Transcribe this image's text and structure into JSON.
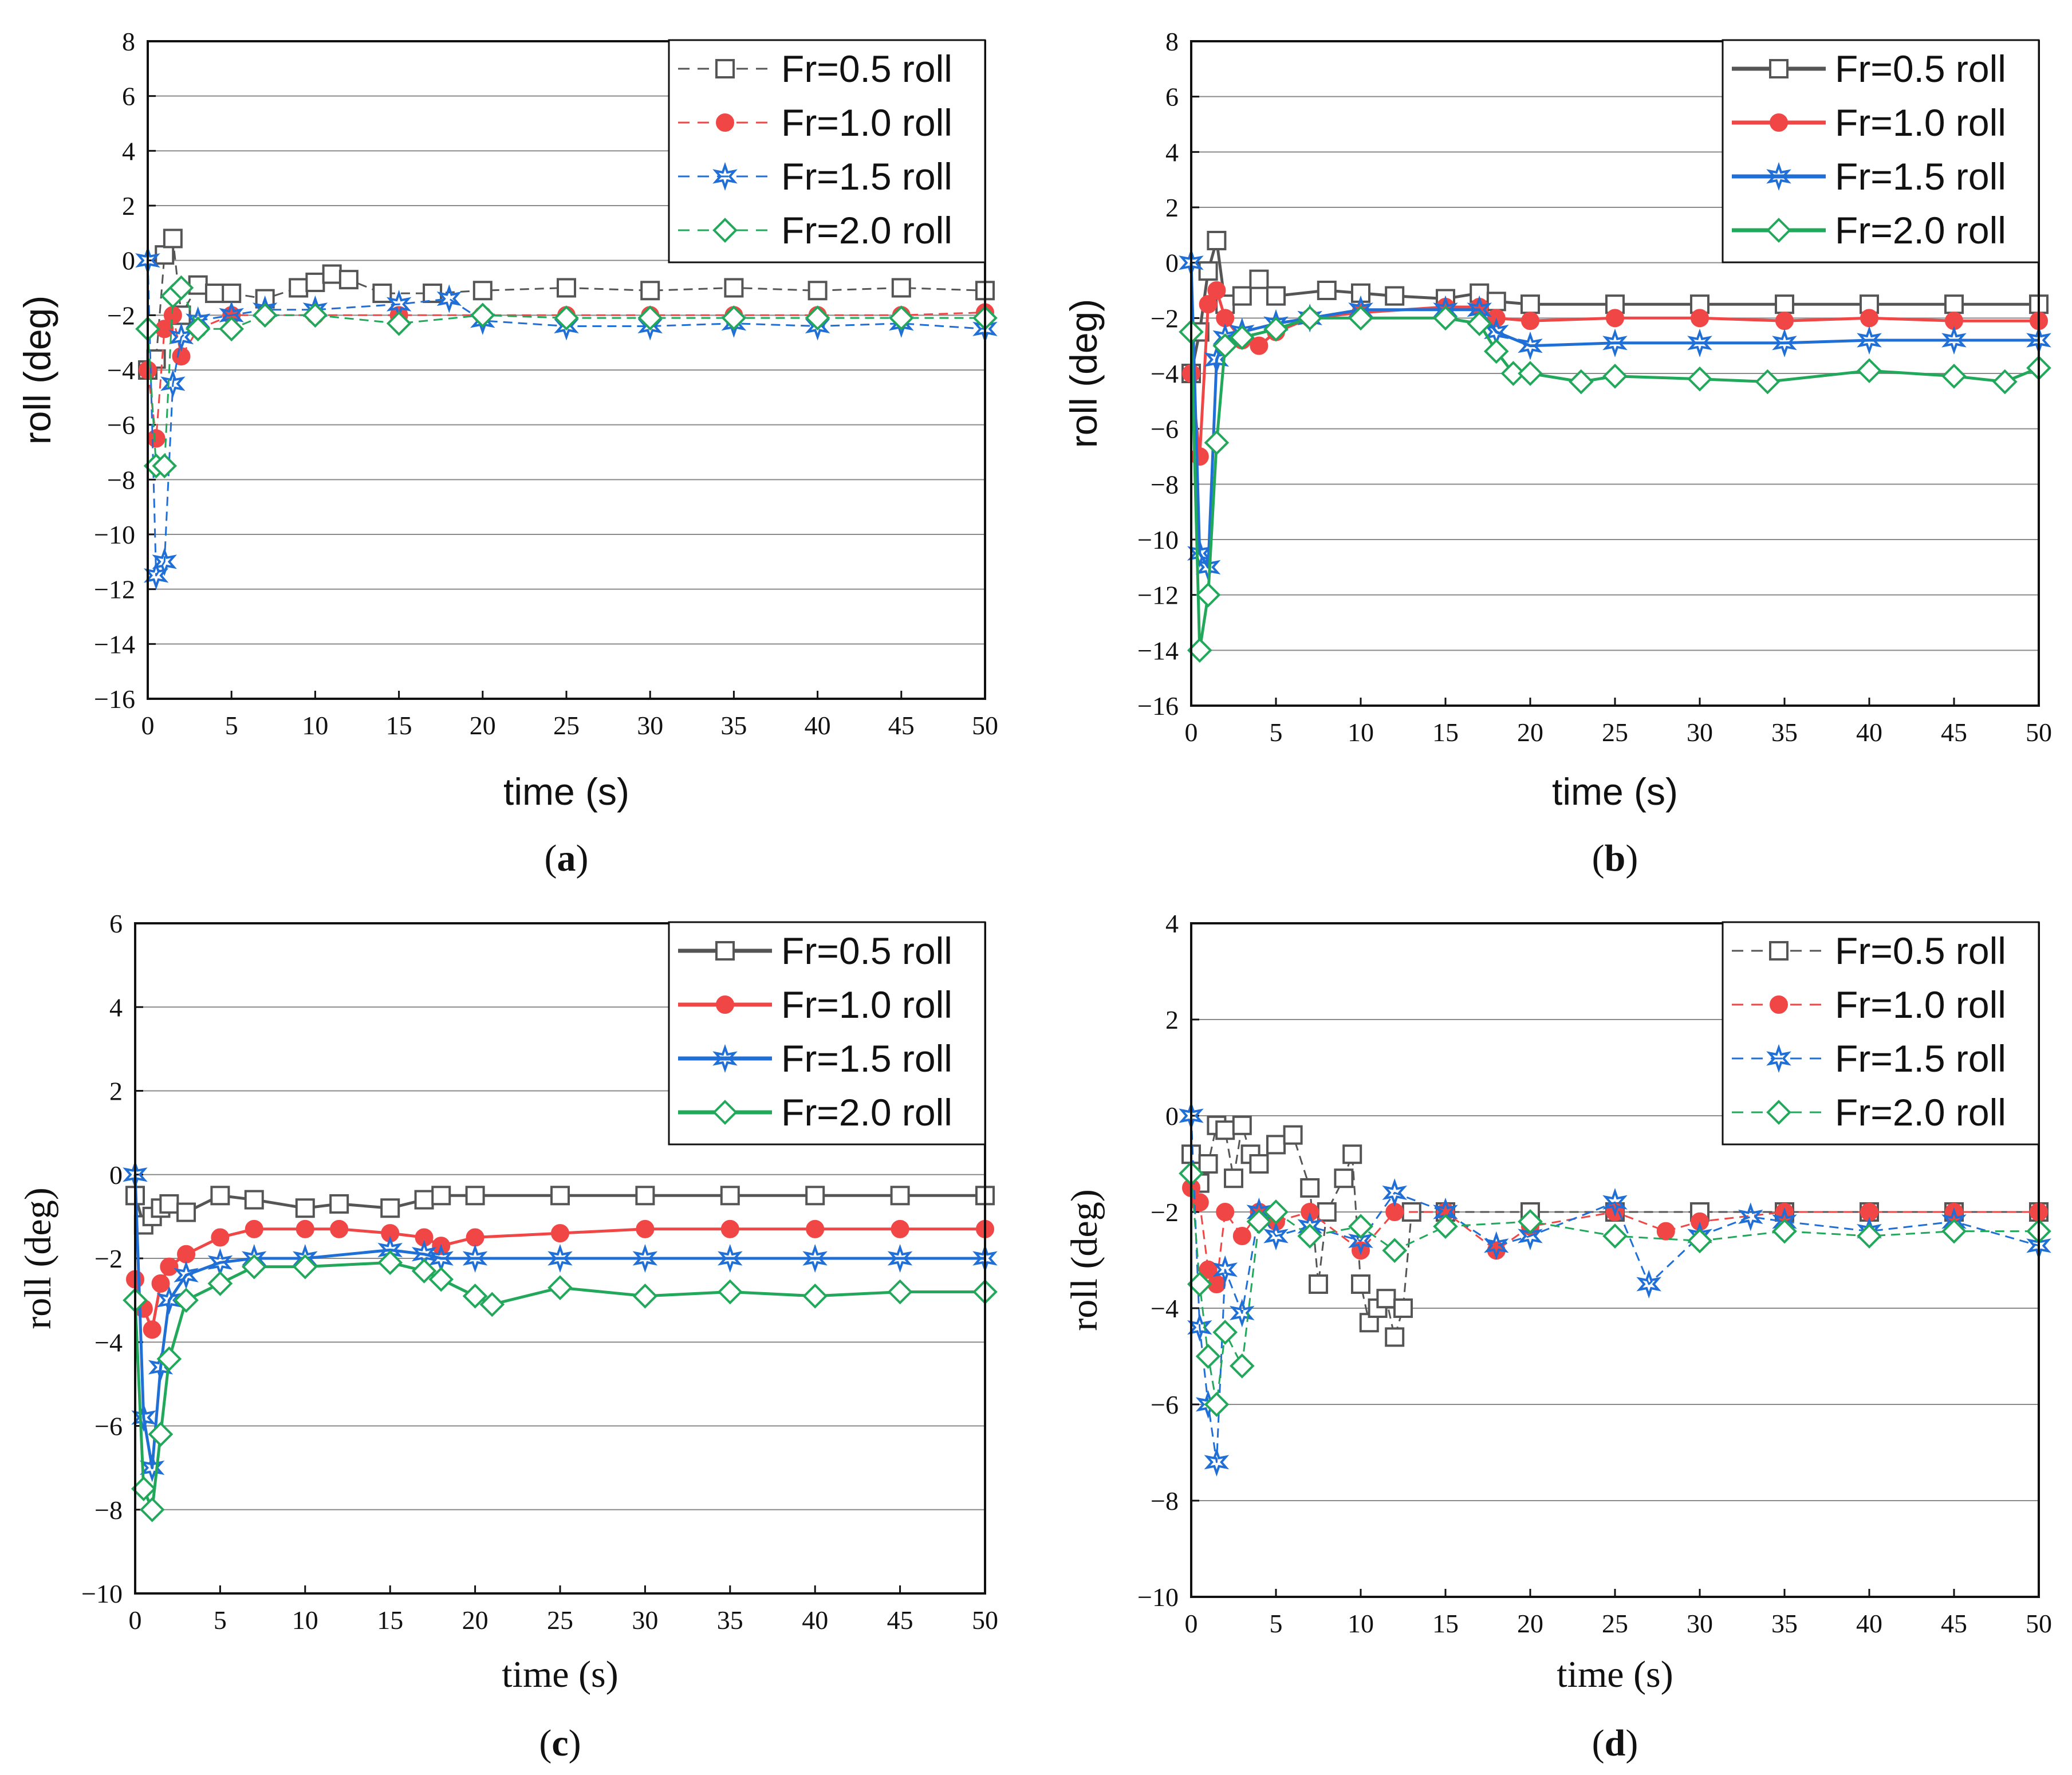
{
  "colors": {
    "Fr=0.5 roll": "#555555",
    "Fr=1.0 roll": "#f04646",
    "Fr=1.5 roll": "#1f6fd6",
    "Fr=2.0 roll": "#22a85a",
    "grid": "#8a8a8a",
    "axis": "#111111"
  },
  "chart_data": [
    {
      "type": "line",
      "caption": "(a)",
      "xlabel": "time  (s)",
      "ylabel": "roll  (deg)",
      "xlim": [
        0,
        50
      ],
      "ylim": [
        -16,
        8
      ],
      "xticks": [
        0,
        5,
        10,
        15,
        20,
        25,
        30,
        35,
        40,
        45,
        50
      ],
      "yticks": [
        8,
        6,
        4,
        2,
        0,
        -2,
        -4,
        -6,
        -8,
        -10,
        -12,
        -14,
        -16
      ],
      "grid": "horizontal",
      "legend_position": "top-right",
      "series": [
        {
          "name": "Fr=0.5 roll",
          "marker": "square-open",
          "dash": "dashed",
          "x": [
            0,
            0.5,
            1,
            1.5,
            2,
            3,
            4,
            5,
            7,
            9,
            10,
            11,
            12,
            14,
            17,
            20,
            25,
            30,
            35,
            40,
            45,
            50
          ],
          "y": [
            -4,
            -3.6,
            0.2,
            0.8,
            -2,
            -0.9,
            -1.2,
            -1.2,
            -1.4,
            -1.0,
            -0.8,
            -0.5,
            -0.7,
            -1.2,
            -1.2,
            -1.1,
            -1.0,
            -1.1,
            -1.0,
            -1.1,
            -1.0,
            -1.1
          ]
        },
        {
          "name": "Fr=1.0 roll",
          "marker": "circle-filled",
          "dash": "dashed",
          "x": [
            0,
            0.5,
            1,
            1.5,
            2,
            3,
            5,
            7,
            10,
            15,
            20,
            25,
            30,
            35,
            40,
            45,
            50
          ],
          "y": [
            -4,
            -6.5,
            -2.5,
            -2.0,
            -3.5,
            -2.5,
            -2.0,
            -2.0,
            -2.0,
            -2.0,
            -2.0,
            -2.0,
            -2.0,
            -2.0,
            -2.0,
            -2.0,
            -1.9
          ]
        },
        {
          "name": "Fr=1.5 roll",
          "marker": "star-open",
          "dash": "dashed",
          "x": [
            0,
            0.5,
            1,
            1.5,
            2,
            3,
            5,
            7,
            10,
            15,
            18,
            20,
            25,
            30,
            35,
            40,
            45,
            50
          ],
          "y": [
            0,
            -11.5,
            -11.0,
            -4.5,
            -2.8,
            -2.2,
            -2.0,
            -1.8,
            -1.8,
            -1.6,
            -1.4,
            -2.2,
            -2.4,
            -2.4,
            -2.3,
            -2.4,
            -2.3,
            -2.5
          ]
        },
        {
          "name": "Fr=2.0 roll",
          "marker": "diamond-open",
          "dash": "dashed",
          "x": [
            0,
            0.5,
            1,
            1.5,
            2,
            3,
            5,
            7,
            10,
            15,
            20,
            25,
            30,
            35,
            40,
            45,
            50
          ],
          "y": [
            -2.5,
            -7.5,
            -7.5,
            -1.3,
            -1.0,
            -2.5,
            -2.5,
            -2.0,
            -2.0,
            -2.3,
            -2.0,
            -2.1,
            -2.1,
            -2.1,
            -2.1,
            -2.1,
            -2.1
          ]
        }
      ]
    },
    {
      "type": "line",
      "caption": "(b)",
      "xlabel": "time  (s)",
      "ylabel": "roll  (deg)",
      "xlim": [
        0,
        50
      ],
      "ylim": [
        -16,
        8
      ],
      "xticks": [
        0,
        5,
        10,
        15,
        20,
        25,
        30,
        35,
        40,
        45,
        50
      ],
      "yticks": [
        8,
        6,
        4,
        2,
        0,
        -2,
        -4,
        -6,
        -8,
        -10,
        -12,
        -14,
        -16
      ],
      "grid": "horizontal",
      "legend_position": "top-right",
      "series": [
        {
          "name": "Fr=0.5 roll",
          "marker": "square-open",
          "dash": "solid",
          "x": [
            0,
            0.5,
            1,
            1.5,
            2,
            3,
            4,
            5,
            8,
            10,
            12,
            15,
            17,
            18,
            20,
            25,
            30,
            35,
            40,
            45,
            50
          ],
          "y": [
            -4,
            -2.5,
            -0.3,
            0.8,
            -1.5,
            -1.2,
            -0.6,
            -1.2,
            -1.0,
            -1.1,
            -1.2,
            -1.3,
            -1.1,
            -1.4,
            -1.5,
            -1.5,
            -1.5,
            -1.5,
            -1.5,
            -1.5,
            -1.5
          ]
        },
        {
          "name": "Fr=1.0 roll",
          "marker": "circle-filled",
          "dash": "solid",
          "x": [
            0,
            0.5,
            1,
            1.5,
            2,
            3,
            4,
            5,
            7,
            10,
            15,
            17,
            18,
            20,
            25,
            30,
            35,
            40,
            45,
            50
          ],
          "y": [
            -4,
            -7.0,
            -1.5,
            -1.0,
            -2.0,
            -2.8,
            -3.0,
            -2.5,
            -2.0,
            -1.8,
            -1.6,
            -1.6,
            -2.0,
            -2.1,
            -2.0,
            -2.0,
            -2.1,
            -2.0,
            -2.1,
            -2.1
          ]
        },
        {
          "name": "Fr=1.5 roll",
          "marker": "star-open",
          "dash": "solid",
          "x": [
            0,
            0.5,
            1,
            1.5,
            2,
            3,
            5,
            7,
            10,
            15,
            17,
            18,
            20,
            25,
            30,
            35,
            40,
            45,
            50
          ],
          "y": [
            0,
            -10.5,
            -11.0,
            -3.5,
            -2.7,
            -2.5,
            -2.2,
            -2.0,
            -1.7,
            -1.7,
            -1.7,
            -2.5,
            -3.0,
            -2.9,
            -2.9,
            -2.9,
            -2.8,
            -2.8,
            -2.8
          ]
        },
        {
          "name": "Fr=2.0 roll",
          "marker": "diamond-open",
          "dash": "solid",
          "x": [
            0,
            0.5,
            1,
            1.5,
            2,
            3,
            5,
            7,
            10,
            15,
            17,
            18,
            19,
            20,
            23,
            25,
            30,
            34,
            40,
            45,
            48,
            50
          ],
          "y": [
            -2.5,
            -14,
            -12,
            -6.5,
            -3.0,
            -2.7,
            -2.4,
            -2.0,
            -2.0,
            -2.0,
            -2.2,
            -3.2,
            -4.0,
            -4.0,
            -4.3,
            -4.1,
            -4.2,
            -4.3,
            -3.9,
            -4.1,
            -4.3,
            -3.8
          ]
        }
      ]
    },
    {
      "type": "line",
      "caption": "(c)",
      "xlabel": "time  (s)",
      "ylabel": "roll  (deg)",
      "xlim": [
        0,
        50
      ],
      "ylim": [
        -10,
        6
      ],
      "xticks": [
        0,
        5,
        10,
        15,
        20,
        25,
        30,
        35,
        40,
        45,
        50
      ],
      "yticks": [
        6,
        4,
        2,
        0,
        -2,
        -4,
        -6,
        -8,
        -10
      ],
      "grid": "horizontal",
      "legend_position": "top-right",
      "series": [
        {
          "name": "Fr=0.5 roll",
          "marker": "square-open",
          "dash": "solid",
          "x": [
            0,
            0.5,
            1,
            1.5,
            2,
            3,
            5,
            7,
            10,
            12,
            15,
            17,
            18,
            20,
            25,
            30,
            35,
            40,
            45,
            50
          ],
          "y": [
            -0.5,
            -1.2,
            -1.0,
            -0.8,
            -0.7,
            -0.9,
            -0.5,
            -0.6,
            -0.8,
            -0.7,
            -0.8,
            -0.6,
            -0.5,
            -0.5,
            -0.5,
            -0.5,
            -0.5,
            -0.5,
            -0.5,
            -0.5
          ]
        },
        {
          "name": "Fr=1.0 roll",
          "marker": "circle-filled",
          "dash": "solid",
          "x": [
            0,
            0.5,
            1,
            1.5,
            2,
            3,
            5,
            7,
            10,
            12,
            15,
            17,
            18,
            20,
            25,
            30,
            35,
            40,
            45,
            50
          ],
          "y": [
            -2.5,
            -3.2,
            -3.7,
            -2.6,
            -2.2,
            -1.9,
            -1.5,
            -1.3,
            -1.3,
            -1.3,
            -1.4,
            -1.5,
            -1.7,
            -1.5,
            -1.4,
            -1.3,
            -1.3,
            -1.3,
            -1.3,
            -1.3
          ]
        },
        {
          "name": "Fr=1.5 roll",
          "marker": "star-open",
          "dash": "solid",
          "x": [
            0,
            0.5,
            1,
            1.5,
            2,
            3,
            5,
            7,
            10,
            15,
            17,
            18,
            20,
            25,
            30,
            35,
            40,
            45,
            50
          ],
          "y": [
            0,
            -5.8,
            -7.0,
            -4.6,
            -3.0,
            -2.4,
            -2.1,
            -2.0,
            -2.0,
            -1.8,
            -1.9,
            -2.0,
            -2.0,
            -2.0,
            -2.0,
            -2.0,
            -2.0,
            -2.0,
            -2.0
          ]
        },
        {
          "name": "Fr=2.0 roll",
          "marker": "diamond-open",
          "dash": "solid",
          "x": [
            0,
            0.5,
            1,
            1.5,
            2,
            3,
            5,
            7,
            10,
            15,
            17,
            18,
            20,
            21,
            25,
            30,
            35,
            40,
            45,
            50
          ],
          "y": [
            -3.0,
            -7.5,
            -8.0,
            -6.2,
            -4.4,
            -3.0,
            -2.6,
            -2.2,
            -2.2,
            -2.1,
            -2.3,
            -2.5,
            -2.9,
            -3.1,
            -2.7,
            -2.9,
            -2.8,
            -2.9,
            -2.8,
            -2.8
          ]
        }
      ]
    },
    {
      "type": "line",
      "caption": "(d)",
      "xlabel": "time  (s)",
      "ylabel": "roll  (deg)",
      "xlim": [
        0,
        50
      ],
      "ylim": [
        -10,
        4
      ],
      "xticks": [
        0,
        5,
        10,
        15,
        20,
        25,
        30,
        35,
        40,
        45,
        50
      ],
      "yticks": [
        4,
        2,
        0,
        -2,
        -4,
        -6,
        -8,
        -10
      ],
      "grid": "horizontal",
      "legend_position": "top-right",
      "series": [
        {
          "name": "Fr=0.5 roll",
          "marker": "square-open",
          "dash": "dashed",
          "x": [
            0,
            0.5,
            1,
            1.5,
            2,
            2.5,
            3,
            3.5,
            4,
            5,
            6,
            7,
            7.5,
            8,
            9,
            9.5,
            10,
            10.5,
            11,
            11.5,
            12,
            12.5,
            13,
            15,
            20,
            25,
            30,
            35,
            40,
            45,
            50
          ],
          "y": [
            -0.8,
            -1.4,
            -1.0,
            -0.2,
            -0.3,
            -1.3,
            -0.2,
            -0.8,
            -1.0,
            -0.6,
            -0.4,
            -1.5,
            -3.5,
            -2.0,
            -1.3,
            -0.8,
            -3.5,
            -4.3,
            -4.0,
            -3.8,
            -4.6,
            -4.0,
            -2.0,
            -2.0,
            -2.0,
            -2.0,
            -2.0,
            -2.0,
            -2.0,
            -2.0,
            -2.0
          ]
        },
        {
          "name": "Fr=1.0 roll",
          "marker": "circle-filled",
          "dash": "dashed",
          "x": [
            0,
            0.5,
            1,
            1.5,
            2,
            3,
            4,
            5,
            7,
            10,
            12,
            15,
            18,
            20,
            25,
            28,
            30,
            35,
            40,
            45,
            50
          ],
          "y": [
            -1.5,
            -1.8,
            -3.2,
            -3.5,
            -2.0,
            -2.5,
            -2.0,
            -2.2,
            -2.0,
            -2.8,
            -2.0,
            -2.0,
            -2.8,
            -2.3,
            -2.0,
            -2.4,
            -2.2,
            -2.0,
            -2.0,
            -2.0,
            -2.0
          ]
        },
        {
          "name": "Fr=1.5 roll",
          "marker": "star-open",
          "dash": "dashed",
          "x": [
            0,
            0.5,
            1,
            1.5,
            2,
            3,
            4,
            5,
            7,
            10,
            12,
            15,
            18,
            20,
            25,
            27,
            30,
            33,
            35,
            40,
            45,
            50
          ],
          "y": [
            0,
            -4.4,
            -6.0,
            -7.2,
            -3.2,
            -4.1,
            -2.0,
            -2.5,
            -2.3,
            -2.6,
            -1.6,
            -2.0,
            -2.7,
            -2.5,
            -1.8,
            -3.5,
            -2.5,
            -2.1,
            -2.2,
            -2.4,
            -2.2,
            -2.7
          ]
        },
        {
          "name": "Fr=2.0 roll",
          "marker": "diamond-open",
          "dash": "dashed",
          "x": [
            0,
            0.5,
            1,
            1.5,
            2,
            3,
            4,
            5,
            7,
            10,
            12,
            15,
            20,
            25,
            30,
            35,
            40,
            45,
            50
          ],
          "y": [
            -1.2,
            -3.5,
            -5.0,
            -6.0,
            -4.5,
            -5.2,
            -2.2,
            -2.0,
            -2.5,
            -2.3,
            -2.8,
            -2.3,
            -2.2,
            -2.5,
            -2.6,
            -2.4,
            -2.5,
            -2.4,
            -2.4
          ]
        }
      ]
    }
  ]
}
